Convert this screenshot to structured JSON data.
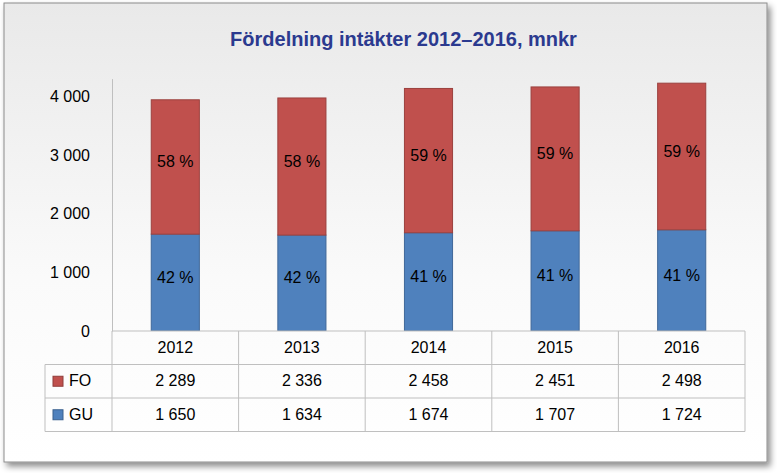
{
  "chart_data": {
    "type": "bar",
    "title": "Fördelning intäkter 2012–2016, mnkr",
    "categories": [
      "2012",
      "2013",
      "2014",
      "2015",
      "2016"
    ],
    "stacked": true,
    "grid": false,
    "ylim": [
      0,
      4300
    ],
    "yticks": [
      0,
      {
        "value": 1000,
        "label": "1 000"
      },
      {
        "value": 2000,
        "label": "2 000"
      },
      {
        "value": 3000,
        "label": "3 000"
      },
      {
        "value": 4000,
        "label": "4 000"
      }
    ],
    "series": [
      {
        "name": "FO",
        "color": "#c0504d",
        "values": [
          2289,
          2336,
          2458,
          2451,
          2498
        ],
        "value_labels": [
          "2 289",
          "2 336",
          "2 458",
          "2 451",
          "2 498"
        ],
        "shares": [
          {
            "value": 58,
            "label": "58 %"
          },
          {
            "value": 58,
            "label": "58 %"
          },
          {
            "value": 59,
            "label": "59 %"
          },
          {
            "value": 59,
            "label": "59 %"
          },
          {
            "value": 59,
            "label": "59 %"
          }
        ]
      },
      {
        "name": "GU",
        "color": "#4f81bd",
        "values": [
          1650,
          1634,
          1674,
          1707,
          1724
        ],
        "value_labels": [
          "1 650",
          "1 634",
          "1 674",
          "1 707",
          "1 724"
        ],
        "shares": [
          {
            "value": 42,
            "label": "42 %"
          },
          {
            "value": 42,
            "label": "42 %"
          },
          {
            "value": 41,
            "label": "41 %"
          },
          {
            "value": 41,
            "label": "41 %"
          },
          {
            "value": 41,
            "label": "41 %"
          }
        ]
      }
    ]
  }
}
